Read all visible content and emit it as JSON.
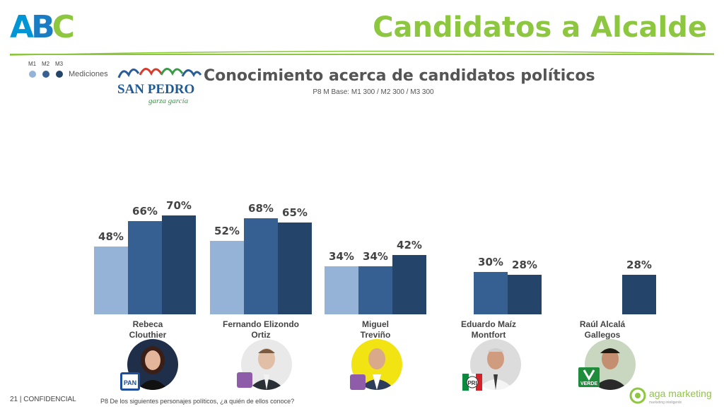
{
  "header": {
    "logo_text": "ABC",
    "title": "Candidatos a Alcalde"
  },
  "legend": {
    "labels": [
      "M1",
      "M2",
      "M3"
    ],
    "caption": "Mediciones"
  },
  "brand": {
    "municipality_logo": "SAN PEDRO",
    "municipality_logo_script": "garza garcía"
  },
  "colors": {
    "M1": "#95b3d7",
    "M2": "#376092",
    "M3": "#254469",
    "accent_green": "#8dc63f"
  },
  "chart_data": {
    "type": "bar",
    "title": "Conocimiento acerca de candidatos políticos",
    "subtitle": "P8 M Base: M1 300 / M2 300 / M3 300",
    "categories": [
      "Rebeca Clouthier",
      "Fernando Elizondo Ortiz",
      "Miguel Treviño",
      "Eduardo Maíz Montfort",
      "Raúl Alcalá Gallegos"
    ],
    "series": [
      {
        "name": "M1",
        "values": [
          48,
          52,
          34,
          null,
          null
        ]
      },
      {
        "name": "M2",
        "values": [
          66,
          68,
          34,
          30,
          null
        ]
      },
      {
        "name": "M3",
        "values": [
          70,
          65,
          42,
          28,
          28
        ]
      }
    ],
    "value_suffix": "%",
    "ylim": [
      0,
      100
    ],
    "grid": false,
    "legend_position": "top-left"
  },
  "candidates": [
    {
      "line1": "Rebeca",
      "line2": "Clouthier",
      "party": "PAN",
      "photo_icon": "woman-portrait-icon"
    },
    {
      "line1": "Fernando Elizondo",
      "line2": "Ortiz",
      "party": "",
      "photo_icon": "man-portrait-icon"
    },
    {
      "line1": "Miguel",
      "line2": "Treviño",
      "party": "",
      "photo_icon": "man-portrait-icon"
    },
    {
      "line1": "Eduardo Maíz",
      "line2": "Montfort",
      "party": "PRI",
      "photo_icon": "man-portrait-icon"
    },
    {
      "line1": "Raúl Alcalá",
      "line2": "Gallegos",
      "party": "VERDE",
      "photo_icon": "man-portrait-icon"
    }
  ],
  "footer": {
    "page_number": "21",
    "confidential": "| CONFIDENCIAL",
    "question": "P8 De los siguientes personajes políticos, ¿a quién de ellos conoce?",
    "company": "aga marketing",
    "company_tagline": "marketing inteligente"
  }
}
